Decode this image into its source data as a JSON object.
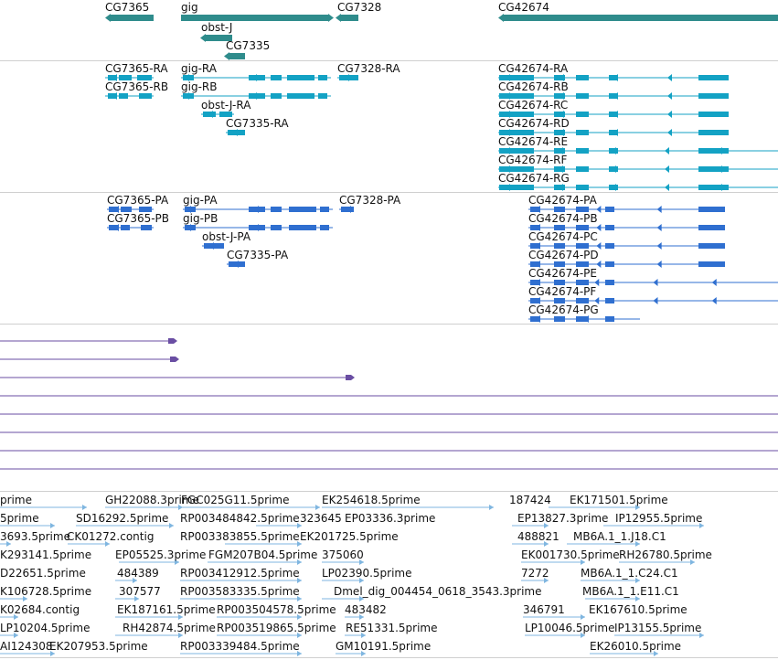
{
  "colors": {
    "gene": "#2f8c8c",
    "transcript": "#13a2c4",
    "protein": "#2f6fd0",
    "alignment": "#6a4ea3",
    "est": "#7fb6e0",
    "divider": "#cfcfcf"
  },
  "tracks": {
    "genes": {
      "items": [
        {
          "label": "CG7365"
        },
        {
          "label": "gig"
        },
        {
          "label": "CG7328"
        },
        {
          "label": "CG42674"
        },
        {
          "label": "obst-J"
        },
        {
          "label": "CG7335"
        }
      ]
    },
    "transcripts": {
      "items": [
        {
          "label": "CG7365-RA"
        },
        {
          "label": "CG7365-RB"
        },
        {
          "label": "gig-RA"
        },
        {
          "label": "gig-RB"
        },
        {
          "label": "obst-J-RA"
        },
        {
          "label": "CG7335-RA"
        },
        {
          "label": "CG7328-RA"
        },
        {
          "label": "CG42674-RA"
        },
        {
          "label": "CG42674-RB"
        },
        {
          "label": "CG42674-RC"
        },
        {
          "label": "CG42674-RD"
        },
        {
          "label": "CG42674-RE"
        },
        {
          "label": "CG42674-RF"
        },
        {
          "label": "CG42674-RG"
        }
      ]
    },
    "proteins": {
      "items": [
        {
          "label": "CG7365-PA"
        },
        {
          "label": "CG7365-PB"
        },
        {
          "label": "gig-PA"
        },
        {
          "label": "gig-PB"
        },
        {
          "label": "obst-J-PA"
        },
        {
          "label": "CG7335-PA"
        },
        {
          "label": "CG7328-PA"
        },
        {
          "label": "CG42674-PA"
        },
        {
          "label": "CG42674-PB"
        },
        {
          "label": "CG42674-PC"
        },
        {
          "label": "CG42674-PD"
        },
        {
          "label": "CG42674-PE"
        },
        {
          "label": "CG42674-PF"
        },
        {
          "label": "CG42674-PG"
        }
      ]
    },
    "est": {
      "items": [
        {
          "label": "prime"
        },
        {
          "label": "GH22088.3prime"
        },
        {
          "label": "FGC025G11.5prime"
        },
        {
          "label": "EK254618.5prime"
        },
        {
          "label": "187424"
        },
        {
          "label": "EK171501.5prime"
        },
        {
          "label": "5prime"
        },
        {
          "label": "SD16292.5prime"
        },
        {
          "label": "RP003484842.5prime"
        },
        {
          "label": "323645"
        },
        {
          "label": "EP03336.3prime"
        },
        {
          "label": "EP13827.3prime"
        },
        {
          "label": "IP12955.5prime"
        },
        {
          "label": "3693.5prime"
        },
        {
          "label": "CK01272.contig"
        },
        {
          "label": "RP003383855.5prime"
        },
        {
          "label": "EK201725.5prime"
        },
        {
          "label": "488821"
        },
        {
          "label": "MB6A.1_1.J18.C1"
        },
        {
          "label": "K293141.5prime"
        },
        {
          "label": "EP05525.3prime"
        },
        {
          "label": "FGM207B04.5prime"
        },
        {
          "label": "375060"
        },
        {
          "label": "EK001730.5prime"
        },
        {
          "label": "RH26780.5prime"
        },
        {
          "label": "D22651.5prime"
        },
        {
          "label": "484389"
        },
        {
          "label": "RP003412912.5prime"
        },
        {
          "label": "LP02390.5prime"
        },
        {
          "label": "7272"
        },
        {
          "label": "MB6A.1_1.C24.C1"
        },
        {
          "label": "K106728.5prime"
        },
        {
          "label": "307577"
        },
        {
          "label": "RP003583335.5prime"
        },
        {
          "label": "Dmel_dig_004454_0618_3543.3prime"
        },
        {
          "label": "MB6A.1_1.E11.C1"
        },
        {
          "label": "K02684.contig"
        },
        {
          "label": "EK187161.5prime"
        },
        {
          "label": "RP003504578.5prime"
        },
        {
          "label": "483482"
        },
        {
          "label": "346791"
        },
        {
          "label": "EK167610.5prime"
        },
        {
          "label": "LP10204.5prime"
        },
        {
          "label": "RH42874.5prime"
        },
        {
          "label": "RP003519865.5prime"
        },
        {
          "label": "RE51331.5prime"
        },
        {
          "label": "LP10046.5prime"
        },
        {
          "label": "IP13155.5prime"
        },
        {
          "label": "AI124308"
        },
        {
          "label": "EK207953.5prime"
        },
        {
          "label": "RP003339484.5prime"
        },
        {
          "label": "GM10191.5prime"
        },
        {
          "label": "EK26010.5prime"
        }
      ]
    }
  }
}
